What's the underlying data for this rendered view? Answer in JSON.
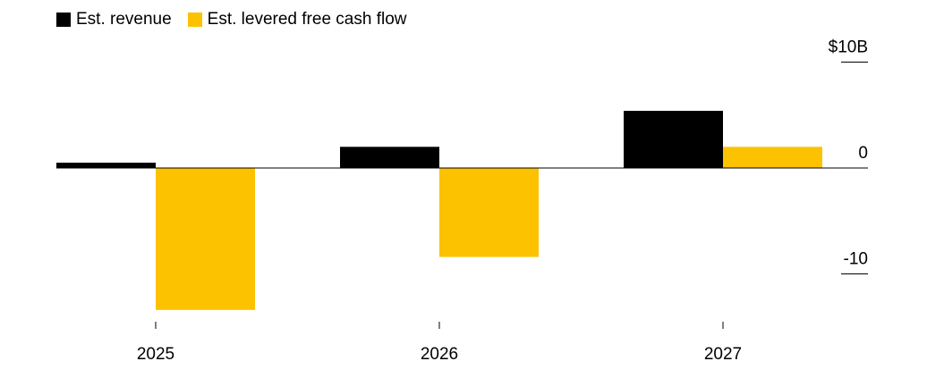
{
  "chart_data": {
    "type": "bar",
    "categories": [
      "2025",
      "2026",
      "2027"
    ],
    "series": [
      {
        "name": "Est. revenue",
        "values": [
          0.5,
          2.0,
          5.4
        ],
        "color": "#000000"
      },
      {
        "name": "Est. levered free cash flow",
        "values": [
          -13.4,
          -8.4,
          2.0
        ],
        "color": "#fcc200"
      }
    ],
    "y_ticks": [
      {
        "value": 10,
        "label": "$10B"
      },
      {
        "value": 0,
        "label": "0"
      },
      {
        "value": -10,
        "label": "-10"
      }
    ],
    "ylim": [
      -16,
      10
    ],
    "legend_position": "top-left",
    "grid": false
  }
}
